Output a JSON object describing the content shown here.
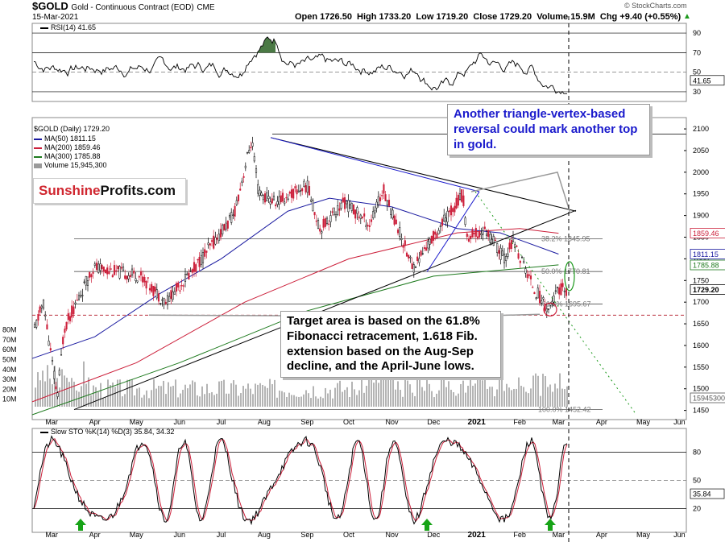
{
  "header": {
    "symbol": "$GOLD",
    "description": "Gold - Continuous Contract (EOD)",
    "exchange": "CME",
    "date": "15-Mar-2021",
    "ohlc": "Open 1726.50  High 1733.20  Low 1719.20  Close 1729.20  Volume 15.9M  Chg +9.40 (+0.55%)",
    "copyright": "© StockCharts.com",
    "up_arrow": "▲"
  },
  "rsi_panel": {
    "label": "RSI(14) 41.65",
    "value_tag": "41.65",
    "ticks": [
      "90",
      "70",
      "50",
      "30"
    ]
  },
  "price_panel": {
    "legend": [
      {
        "text": "$GOLD (Daily) 1729.20",
        "color": "#000000"
      },
      {
        "text": "MA(50) 1811.15",
        "color": "#1a1aa0"
      },
      {
        "text": "MA(200) 1859.46",
        "color": "#cc1f3a"
      },
      {
        "text": "MA(300) 1785.88",
        "color": "#1e7a1e"
      },
      {
        "text": "Volume 15,945,300",
        "color": "#9a9a9a"
      }
    ],
    "price_ticks": [
      "2100",
      "2050",
      "2000",
      "1950",
      "1900",
      "1850",
      "1800",
      "1750",
      "1700",
      "1650",
      "1600",
      "1550",
      "1500",
      "1450"
    ],
    "volume_ticks": [
      "80M",
      "70M",
      "60M",
      "50M",
      "40M",
      "30M",
      "20M",
      "10M"
    ],
    "tags": [
      {
        "text": "1859.46",
        "color": "#cc1f3a"
      },
      {
        "text": "1811.15",
        "color": "#1a1aa0"
      },
      {
        "text": "1785.88",
        "color": "#1e7a1e"
      },
      {
        "text": "1729.20",
        "color": "#000000"
      },
      {
        "text": "15945300",
        "color": "#555555"
      }
    ],
    "fib_labels": [
      "38.2% 1845.95",
      "50.0% 1770.81",
      "61.8% 1695.67",
      "100.0% 1452.42"
    ]
  },
  "sto_panel": {
    "label": "Slow STO %K(14) %D(3) 35.84, 34.32",
    "value_tag": "35.84",
    "ticks": [
      "80",
      "50",
      "20"
    ]
  },
  "x_axis": {
    "months": [
      "Mar",
      "Apr",
      "May",
      "Jun",
      "Jul",
      "Aug",
      "Sep",
      "Oct",
      "Nov",
      "Dec",
      "2021",
      "Feb",
      "Mar",
      "Apr",
      "May",
      "Jun"
    ]
  },
  "annotations": {
    "brand_a": "Sunshine",
    "brand_b": "Profits.com",
    "callout_top": "Another triangle-vertex-based reversal could mark another top in gold.",
    "callout_bottom": "Target area is based on the 61.8% Fibonacci retracement, 1.618 Fib. extension based on the Aug-Sep decline, and the April-June lows."
  },
  "colors": {
    "ma50": "#1a1aa0",
    "ma200": "#cc1f3a",
    "ma300": "#1e7a1e",
    "volume": "#b4b4b4",
    "callout_top_text": "#1a1acc",
    "arrow": "#17a317",
    "brand_red": "#d0262f",
    "rsi_fill": "#4b7a45"
  },
  "chart_data": {
    "type": "line",
    "title": "$GOLD Gold - Continuous Contract (EOD) CME",
    "x_range": [
      "2020-03-01",
      "2021-06-15"
    ],
    "price": {
      "ylim": [
        1440,
        2115
      ],
      "series": [
        {
          "name": "Gold close",
          "x": [
            "2020-03-01",
            "2020-03-09",
            "2020-03-19",
            "2020-03-24",
            "2020-04-14",
            "2020-05-18",
            "2020-06-05",
            "2020-06-26",
            "2020-07-24",
            "2020-08-06",
            "2020-08-11",
            "2020-08-24",
            "2020-09-15",
            "2020-09-24",
            "2020-10-12",
            "2020-10-30",
            "2020-11-09",
            "2020-11-30",
            "2020-12-21",
            "2021-01-05",
            "2021-01-08",
            "2021-01-22",
            "2021-02-04",
            "2021-02-10",
            "2021-02-26",
            "2021-03-08",
            "2021-03-15"
          ],
          "values": [
            1620,
            1700,
            1480,
            1640,
            1780,
            1760,
            1700,
            1780,
            1900,
            2075,
            1950,
            1930,
            1970,
            1870,
            1930,
            1880,
            1960,
            1780,
            1880,
            1950,
            1850,
            1865,
            1800,
            1840,
            1728,
            1683,
            1729
          ]
        },
        {
          "name": "MA(50)",
          "x": [
            "2020-03-01",
            "2020-04-15",
            "2020-06-01",
            "2020-07-15",
            "2020-09-01",
            "2020-10-01",
            "2020-11-15",
            "2021-01-01",
            "2021-02-01",
            "2021-03-15"
          ],
          "values": [
            1570,
            1620,
            1720,
            1800,
            1910,
            1940,
            1920,
            1870,
            1860,
            1811
          ]
        },
        {
          "name": "MA(200)",
          "x": [
            "2020-03-01",
            "2020-05-15",
            "2020-08-01",
            "2020-10-15",
            "2021-01-01",
            "2021-02-15",
            "2021-03-15"
          ],
          "values": [
            1470,
            1560,
            1700,
            1800,
            1860,
            1870,
            1859
          ]
        },
        {
          "name": "MA(300)",
          "x": [
            "2020-03-01",
            "2020-06-15",
            "2020-09-15",
            "2020-12-15",
            "2021-03-15"
          ],
          "values": [
            1440,
            1560,
            1680,
            1760,
            1786
          ]
        }
      ],
      "fibonacci": [
        {
          "label": "38.2%",
          "value": 1845.95
        },
        {
          "label": "50.0%",
          "value": 1770.81
        },
        {
          "label": "61.8%",
          "value": 1695.67
        },
        {
          "label": "100.0%",
          "value": 1452.42
        }
      ],
      "target_line": 1670
    },
    "rsi": {
      "ylim": [
        25,
        95
      ],
      "levels": [
        70,
        50,
        30
      ],
      "last": 41.65
    },
    "stochastic": {
      "ylim": [
        0,
        100
      ],
      "levels": [
        80,
        50,
        20
      ],
      "k_last": 35.84,
      "d_last": 34.32
    },
    "volume_last": 15945300
  }
}
